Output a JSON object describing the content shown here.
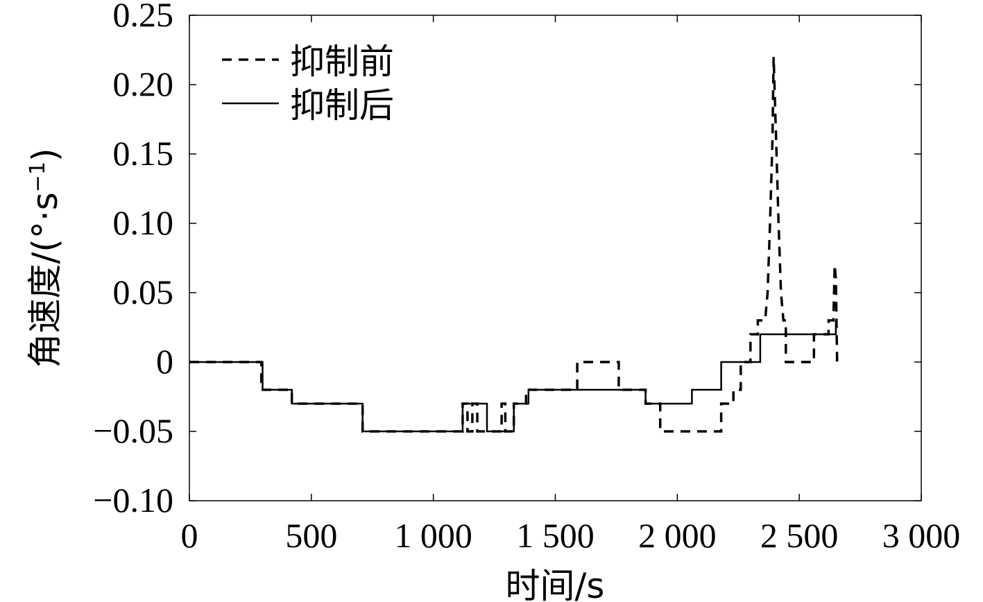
{
  "chart_data": {
    "type": "line",
    "xlabel": "时间/s",
    "ylabel_main": "角速度/(°·s",
    "ylabel_sup": "−1",
    "ylabel_close": ")",
    "xlim": [
      0,
      3000
    ],
    "ylim": [
      -0.1,
      0.25
    ],
    "xticks": [
      0,
      500,
      1000,
      1500,
      2000,
      2500,
      3000
    ],
    "xtick_labels": [
      "0",
      "500",
      "1 000",
      "1 500",
      "2 000",
      "2 500",
      "3 000"
    ],
    "yticks": [
      -0.1,
      -0.05,
      0,
      0.05,
      0.1,
      0.15,
      0.2,
      0.25
    ],
    "ytick_labels": [
      "−0.10",
      "−0.05",
      "0",
      "0.05",
      "0.10",
      "0.15",
      "0.20",
      "0.25"
    ],
    "grid": false,
    "legend_position": "top-left",
    "series": [
      {
        "name": "抑制前",
        "style": "dashed",
        "color": "#000000",
        "points": [
          [
            0,
            0
          ],
          [
            295,
            0
          ],
          [
            295,
            -0.02
          ],
          [
            420,
            -0.02
          ],
          [
            420,
            -0.03
          ],
          [
            710,
            -0.03
          ],
          [
            710,
            -0.05
          ],
          [
            1120,
            -0.05
          ],
          [
            1120,
            -0.03
          ],
          [
            1140,
            -0.03
          ],
          [
            1140,
            -0.05
          ],
          [
            1160,
            -0.05
          ],
          [
            1160,
            -0.03
          ],
          [
            1180,
            -0.03
          ],
          [
            1180,
            -0.05
          ],
          [
            1280,
            -0.05
          ],
          [
            1280,
            -0.03
          ],
          [
            1295,
            -0.03
          ],
          [
            1295,
            -0.05
          ],
          [
            1330,
            -0.05
          ],
          [
            1330,
            -0.03
          ],
          [
            1380,
            -0.03
          ],
          [
            1380,
            -0.02
          ],
          [
            1590,
            -0.02
          ],
          [
            1590,
            0
          ],
          [
            1760,
            0
          ],
          [
            1760,
            -0.02
          ],
          [
            1870,
            -0.02
          ],
          [
            1870,
            -0.03
          ],
          [
            1930,
            -0.03
          ],
          [
            1930,
            -0.05
          ],
          [
            2180,
            -0.05
          ],
          [
            2180,
            -0.03
          ],
          [
            2230,
            -0.03
          ],
          [
            2230,
            -0.02
          ],
          [
            2260,
            -0.02
          ],
          [
            2260,
            0
          ],
          [
            2300,
            0
          ],
          [
            2300,
            0.02
          ],
          [
            2330,
            0.02
          ],
          [
            2330,
            0.03
          ],
          [
            2360,
            0.03
          ],
          [
            2370,
            0.05
          ],
          [
            2380,
            0.1
          ],
          [
            2390,
            0.16
          ],
          [
            2395,
            0.22
          ],
          [
            2405,
            0.16
          ],
          [
            2415,
            0.1
          ],
          [
            2425,
            0.05
          ],
          [
            2435,
            0.03
          ],
          [
            2445,
            0.03
          ],
          [
            2445,
            0
          ],
          [
            2560,
            0
          ],
          [
            2560,
            0.02
          ],
          [
            2620,
            0.02
          ],
          [
            2620,
            0.03
          ],
          [
            2640,
            0.03
          ],
          [
            2645,
            0.07
          ],
          [
            2650,
            0.06
          ],
          [
            2655,
            0
          ]
        ]
      },
      {
        "name": "抑制后",
        "style": "solid",
        "color": "#000000",
        "points": [
          [
            0,
            0
          ],
          [
            300,
            0
          ],
          [
            300,
            -0.02
          ],
          [
            420,
            -0.02
          ],
          [
            420,
            -0.03
          ],
          [
            710,
            -0.03
          ],
          [
            710,
            -0.05
          ],
          [
            1120,
            -0.05
          ],
          [
            1120,
            -0.03
          ],
          [
            1220,
            -0.03
          ],
          [
            1220,
            -0.05
          ],
          [
            1330,
            -0.05
          ],
          [
            1330,
            -0.03
          ],
          [
            1390,
            -0.03
          ],
          [
            1390,
            -0.02
          ],
          [
            1870,
            -0.02
          ],
          [
            1870,
            -0.03
          ],
          [
            2060,
            -0.03
          ],
          [
            2060,
            -0.02
          ],
          [
            2180,
            -0.02
          ],
          [
            2180,
            0
          ],
          [
            2340,
            0
          ],
          [
            2340,
            0.02
          ],
          [
            2650,
            0.02
          ],
          [
            2650,
            0.03
          ]
        ]
      }
    ]
  }
}
